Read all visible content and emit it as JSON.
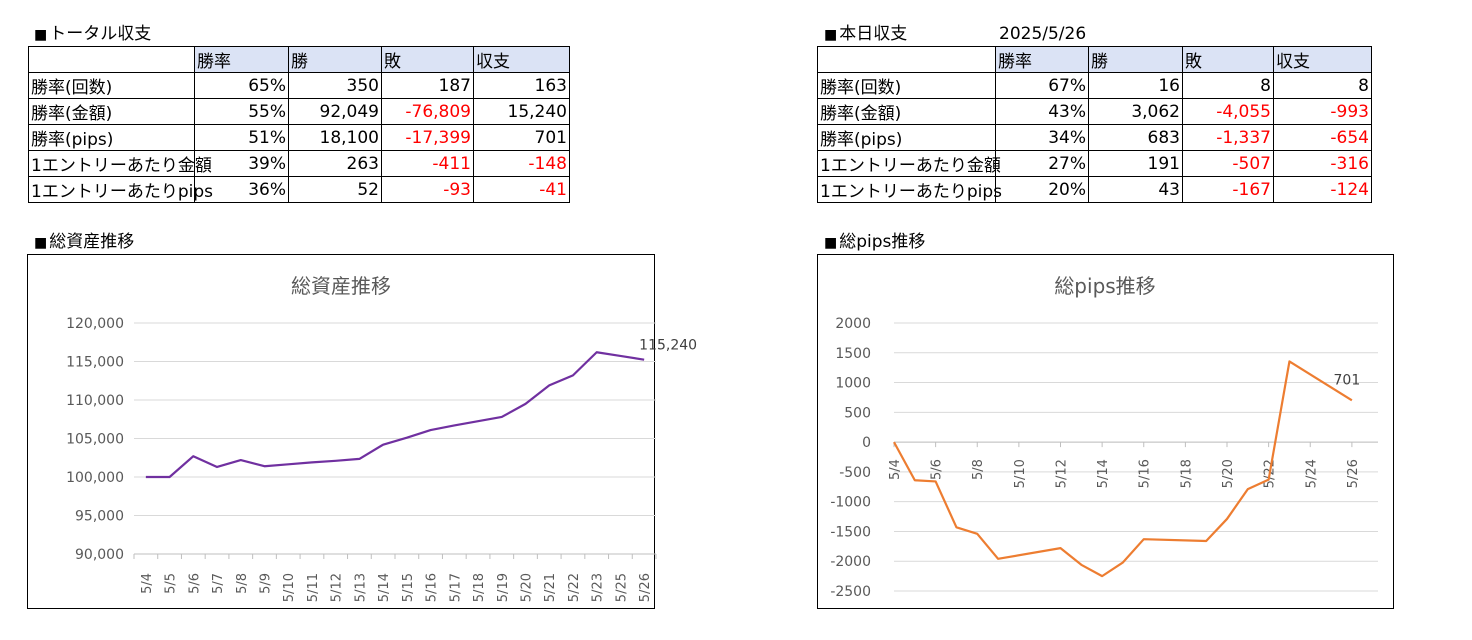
{
  "left_table": {
    "section_title": "トータル収支",
    "headers": [
      "",
      "勝率",
      "勝",
      "敗",
      "収支"
    ],
    "rows": [
      {
        "label": "勝率(回数)",
        "win_rate": "65%",
        "win": "350",
        "loss": "187",
        "pnl": "163",
        "loss_neg": false,
        "pnl_neg": false
      },
      {
        "label": "勝率(金額)",
        "win_rate": "55%",
        "win": "92,049",
        "loss": "-76,809",
        "pnl": "15,240",
        "loss_neg": true,
        "pnl_neg": false
      },
      {
        "label": "勝率(pips)",
        "win_rate": "51%",
        "win": "18,100",
        "loss": "-17,399",
        "pnl": "701",
        "loss_neg": true,
        "pnl_neg": false
      },
      {
        "label": "1エントリーあたり金額",
        "win_rate": "39%",
        "win": "263",
        "loss": "-411",
        "pnl": "-148",
        "loss_neg": true,
        "pnl_neg": true
      },
      {
        "label": "1エントリーあたりpips",
        "win_rate": "36%",
        "win": "52",
        "loss": "-93",
        "pnl": "-41",
        "loss_neg": true,
        "pnl_neg": true
      }
    ]
  },
  "right_table": {
    "section_title": "本日収支",
    "date": "2025/5/26",
    "headers": [
      "",
      "勝率",
      "勝",
      "敗",
      "収支"
    ],
    "rows": [
      {
        "label": "勝率(回数)",
        "win_rate": "67%",
        "win": "16",
        "loss": "8",
        "pnl": "8",
        "loss_neg": false,
        "pnl_neg": false
      },
      {
        "label": "勝率(金額)",
        "win_rate": "43%",
        "win": "3,062",
        "loss": "-4,055",
        "pnl": "-993",
        "loss_neg": true,
        "pnl_neg": true
      },
      {
        "label": "勝率(pips)",
        "win_rate": "34%",
        "win": "683",
        "loss": "-1,337",
        "pnl": "-654",
        "loss_neg": true,
        "pnl_neg": true
      },
      {
        "label": "1エントリーあたり金額",
        "win_rate": "27%",
        "win": "191",
        "loss": "-507",
        "pnl": "-316",
        "loss_neg": true,
        "pnl_neg": true
      },
      {
        "label": "1エントリーあたりpips",
        "win_rate": "20%",
        "win": "43",
        "loss": "-167",
        "pnl": "-124",
        "loss_neg": true,
        "pnl_neg": true
      }
    ]
  },
  "section_marker": "■",
  "chart_sections": {
    "assets": "総資産推移",
    "pips": "総pips推移"
  },
  "colors": {
    "header_bg": "#dbe3f5",
    "negative_text": "#ff0000",
    "assets_line": "#7030a0",
    "pips_line": "#ed7d31",
    "gridline": "#d9d9d9",
    "axis_text": "#595959"
  },
  "chart_data": [
    {
      "type": "line",
      "title": "総資産推移",
      "xlabel": "",
      "ylabel": "",
      "categories": [
        "5/4",
        "5/5",
        "5/6",
        "5/7",
        "5/8",
        "5/9",
        "5/10",
        "5/11",
        "5/12",
        "5/13",
        "5/14",
        "5/15",
        "5/16",
        "5/17",
        "5/18",
        "5/19",
        "5/20",
        "5/21",
        "5/22",
        "5/23",
        "5/25",
        "5/26"
      ],
      "series": [
        {
          "values": [
            100000,
            100000,
            102700,
            101300,
            102200,
            101400,
            101650,
            101900,
            102100,
            102350,
            104200,
            105100,
            106100,
            106700,
            107250,
            107800,
            109500,
            111900,
            113200,
            116200,
            115720,
            115240
          ]
        }
      ],
      "ylim": [
        90000,
        120000
      ],
      "yticks": [
        "120,000",
        "115,000",
        "110,000",
        "105,000",
        "100,000",
        "95,000",
        "90,000"
      ],
      "ytick_values": [
        120000,
        115000,
        110000,
        105000,
        100000,
        95000,
        90000
      ],
      "end_label": "115,240",
      "grid": true,
      "legend": "none"
    },
    {
      "type": "line",
      "title": "総pips推移",
      "xlabel": "",
      "ylabel": "",
      "x": [
        "5/4",
        "5/5",
        "5/6",
        "5/7",
        "5/8",
        "5/9",
        "5/12",
        "5/13",
        "5/14",
        "5/15",
        "5/16",
        "5/19",
        "5/20",
        "5/21",
        "5/22",
        "5/23",
        "5/26"
      ],
      "x_index": [
        0,
        1,
        2,
        3,
        4,
        5,
        8,
        9,
        10,
        11,
        12,
        15,
        16,
        17,
        18,
        19,
        22
      ],
      "categories_shown": [
        "5/4",
        "5/6",
        "5/8",
        "5/10",
        "5/12",
        "5/14",
        "5/16",
        "5/18",
        "5/20",
        "5/22",
        "5/24",
        "5/26"
      ],
      "categories_shown_index": [
        0,
        2,
        4,
        6,
        8,
        10,
        12,
        14,
        16,
        18,
        20,
        22
      ],
      "series": [
        {
          "values": [
            0,
            -640,
            -660,
            -1430,
            -1540,
            -1960,
            -1780,
            -2060,
            -2250,
            -2020,
            -1630,
            -1660,
            -1290,
            -790,
            -630,
            1355,
            701
          ]
        }
      ],
      "ylim": [
        -2500,
        2000
      ],
      "yticks": [
        "2000",
        "1500",
        "1000",
        "500",
        "0",
        "-500",
        "-1000",
        "-1500",
        "-2000",
        "-2500"
      ],
      "ytick_values": [
        2000,
        1500,
        1000,
        500,
        0,
        -500,
        -1000,
        -1500,
        -2000,
        -2500
      ],
      "end_label": "701",
      "grid": true,
      "legend": "none"
    }
  ]
}
